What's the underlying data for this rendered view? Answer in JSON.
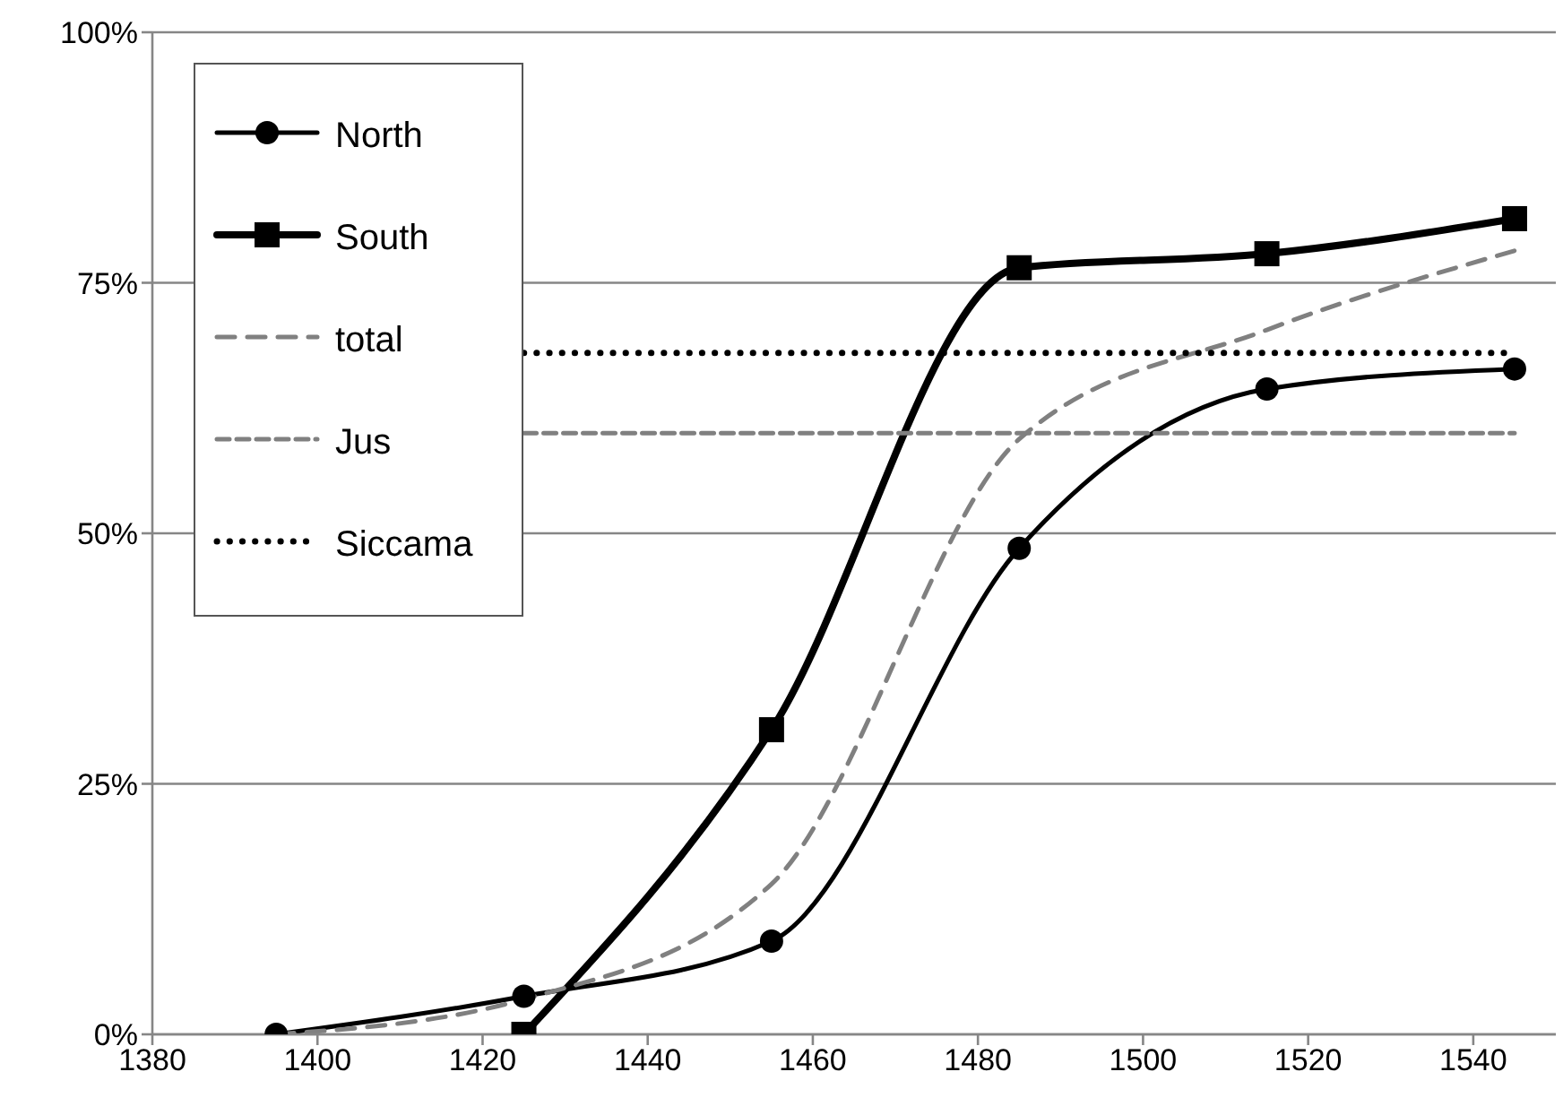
{
  "chart_data": {
    "type": "line",
    "series": [
      {
        "name": "North",
        "color": "#000000",
        "marker": "circle",
        "line_style": "solid",
        "x": [
          1395,
          1425,
          1455,
          1485,
          1515,
          1545
        ],
        "values": [
          0,
          3.8,
          9.3,
          48.5,
          64.4,
          66.4
        ]
      },
      {
        "name": "South",
        "color": "#000000",
        "marker": "square",
        "line_style": "solid",
        "x": [
          1425,
          1455,
          1485,
          1515,
          1545
        ],
        "values": [
          0,
          30.4,
          76.5,
          77.9,
          81.4
        ]
      },
      {
        "name": "total",
        "color": "#808080",
        "marker": "none",
        "line_style": "dashed",
        "x": [
          1395,
          1425,
          1455,
          1485,
          1515,
          1545
        ],
        "values": [
          0,
          3.5,
          15,
          59.4,
          70.3,
          78.2
        ]
      },
      {
        "name": "Jus",
        "color": "#808080",
        "marker": "none",
        "line_style": "dashed",
        "x": [
          1425,
          1545
        ],
        "values": [
          60,
          60
        ]
      },
      {
        "name": "Siccama",
        "color": "#000000",
        "marker": "none",
        "line_style": "dotted",
        "x": [
          1425,
          1545
        ],
        "values": [
          68,
          68
        ]
      }
    ],
    "xlim": [
      1380,
      1550
    ],
    "xticks": [
      1380,
      1400,
      1420,
      1440,
      1460,
      1480,
      1500,
      1520,
      1540
    ],
    "ylim": [
      0,
      100
    ],
    "yticks": [
      {
        "value": 0,
        "label": "0%"
      },
      {
        "value": 25,
        "label": "25%"
      },
      {
        "value": 50,
        "label": "50%"
      },
      {
        "value": 75,
        "label": "75%"
      },
      {
        "value": 100,
        "label": "100%"
      }
    ],
    "grid": "y",
    "legend": "top left"
  }
}
